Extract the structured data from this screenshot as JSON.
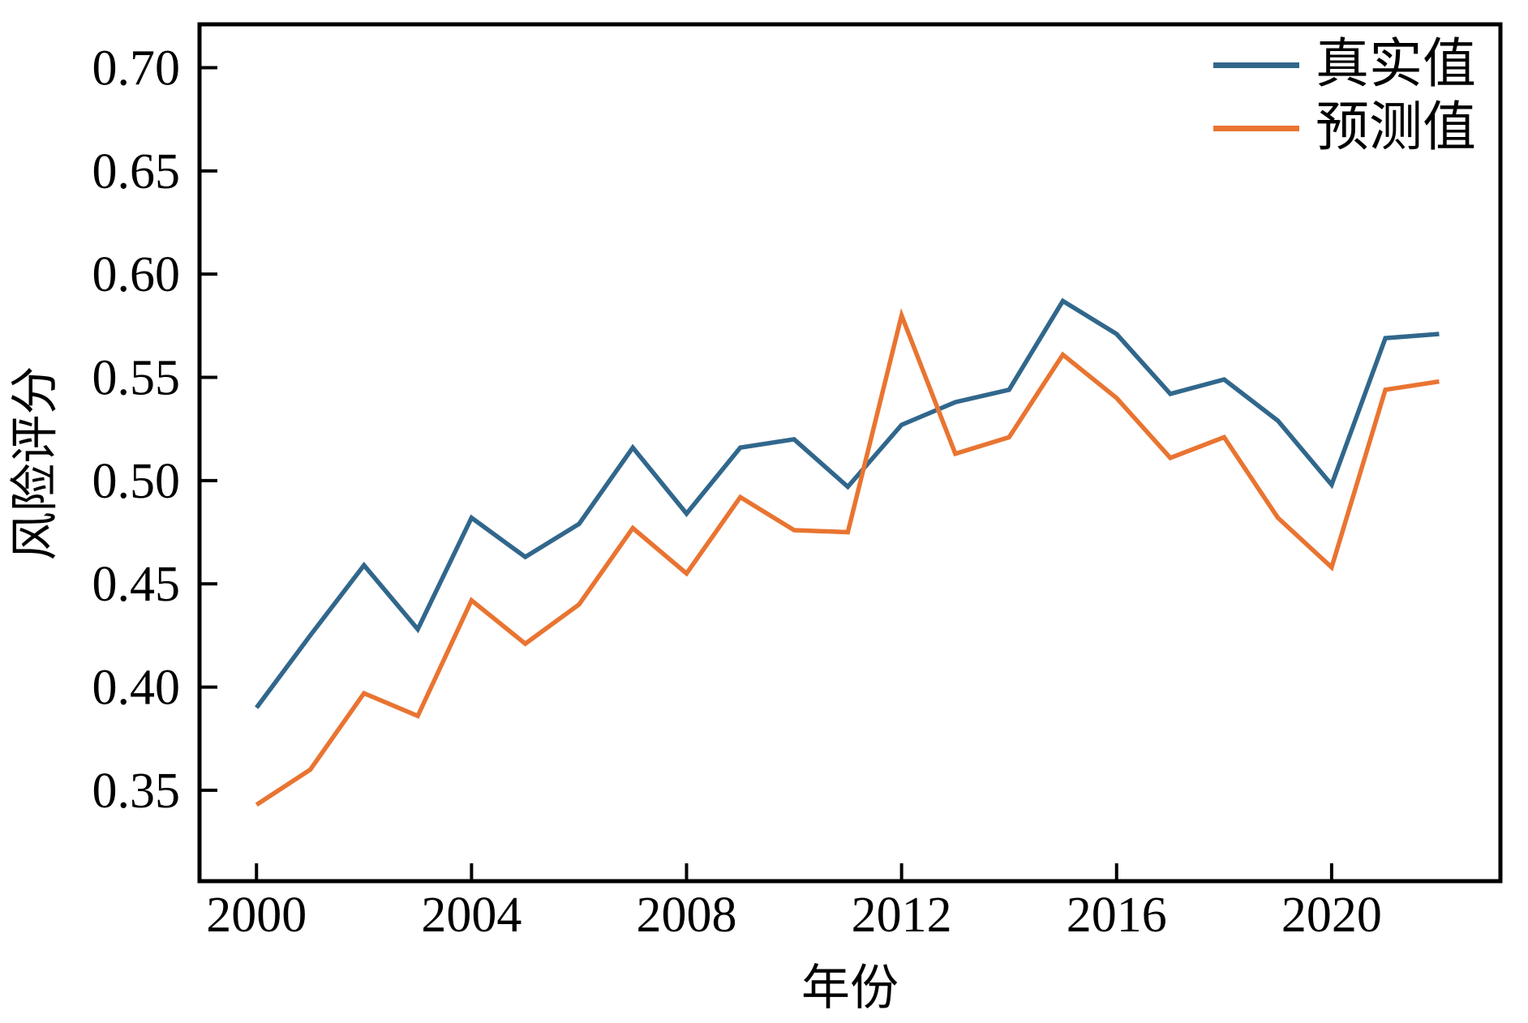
{
  "chart_data": {
    "type": "line",
    "title": "",
    "xlabel": "年份",
    "ylabel": "风险评分",
    "x": [
      2000,
      2001,
      2002,
      2003,
      2004,
      2005,
      2006,
      2007,
      2008,
      2009,
      2010,
      2011,
      2012,
      2013,
      2014,
      2015,
      2016,
      2017,
      2018,
      2019,
      2020,
      2021,
      2022
    ],
    "series": [
      {
        "name": "真实值",
        "color": "#31678c",
        "values": [
          0.39,
          0.425,
          0.459,
          0.428,
          0.482,
          0.463,
          0.479,
          0.516,
          0.484,
          0.516,
          0.52,
          0.497,
          0.527,
          0.538,
          0.544,
          0.587,
          0.571,
          0.542,
          0.549,
          0.529,
          0.498,
          0.569,
          0.571
        ]
      },
      {
        "name": "预测值",
        "color": "#e97431",
        "values": [
          0.343,
          0.36,
          0.397,
          0.386,
          0.442,
          0.421,
          0.44,
          0.477,
          0.455,
          0.492,
          0.476,
          0.475,
          0.58,
          0.513,
          0.521,
          0.561,
          0.54,
          0.511,
          0.521,
          0.482,
          0.458,
          0.544,
          0.548
        ]
      }
    ],
    "xlim": [
      1998.94,
      2023.14
    ],
    "ylim": [
      0.306,
      0.721
    ],
    "xticks": [
      2000,
      2004,
      2008,
      2012,
      2016,
      2020
    ],
    "yticks": [
      0.35,
      0.4,
      0.45,
      0.5,
      0.55,
      0.6,
      0.65,
      0.7
    ],
    "ytick_labels": [
      "0.35",
      "0.40",
      "0.45",
      "0.50",
      "0.55",
      "0.60",
      "0.65",
      "0.70"
    ],
    "grid": false,
    "legend_position": "upper right",
    "frame_color": "#000000",
    "tick_label_color": "#000000"
  }
}
